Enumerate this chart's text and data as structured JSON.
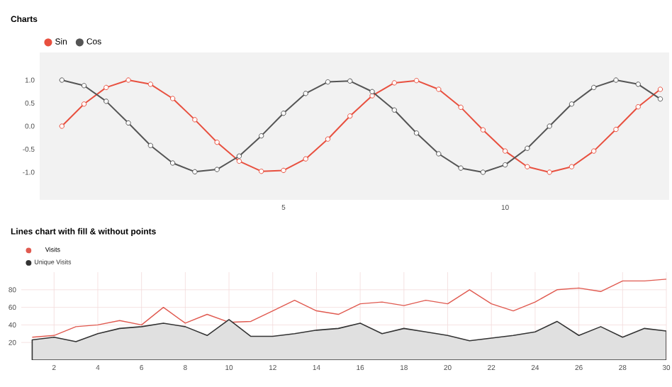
{
  "chart_data": [
    {
      "type": "line",
      "title": "Charts",
      "x": [
        0,
        0.5,
        1,
        1.5,
        2,
        2.5,
        3,
        3.5,
        4,
        4.5,
        5,
        5.5,
        6,
        6.5,
        7,
        7.5,
        8,
        8.5,
        9,
        9.5,
        10,
        10.5,
        11,
        11.5,
        12,
        12.5,
        13,
        13.5
      ],
      "series": [
        {
          "name": "Sin",
          "color": "#e8503f",
          "values": [
            0,
            0.48,
            0.84,
            1.0,
            0.91,
            0.6,
            0.14,
            -0.35,
            -0.76,
            -0.98,
            -0.96,
            -0.71,
            -0.28,
            0.22,
            0.66,
            0.94,
            0.99,
            0.8,
            0.41,
            -0.08,
            -0.54,
            -0.88,
            -1.0,
            -0.88,
            -0.54,
            -0.07,
            0.42,
            0.8
          ]
        },
        {
          "name": "Cos",
          "color": "#555555",
          "values": [
            1.0,
            0.88,
            0.54,
            0.07,
            -0.42,
            -0.8,
            -0.99,
            -0.94,
            -0.65,
            -0.21,
            0.28,
            0.71,
            0.96,
            0.98,
            0.75,
            0.35,
            -0.15,
            -0.6,
            -0.91,
            -1.0,
            -0.84,
            -0.48,
            0.0,
            0.48,
            0.84,
            1.0,
            0.91,
            0.59
          ]
        }
      ],
      "xlim": [
        -0.5,
        13.7
      ],
      "ylim": [
        -1.6,
        1.6
      ],
      "xticks": [
        5,
        10
      ],
      "yticks": [
        {
          "value": -1,
          "label": "-1.0"
        },
        {
          "value": -0.5,
          "label": "-0.5"
        },
        {
          "value": 0,
          "label": "0.0"
        },
        {
          "value": 0.5,
          "label": "0.5"
        },
        {
          "value": 1,
          "label": "1.0"
        }
      ],
      "marker": "circle",
      "legend": "top left",
      "grid": false
    },
    {
      "type": "line",
      "title": "Lines chart with fill & without points",
      "x": [
        1,
        2,
        3,
        4,
        5,
        6,
        7,
        8,
        9,
        10,
        11,
        12,
        13,
        14,
        15,
        16,
        17,
        18,
        19,
        20,
        21,
        22,
        23,
        24,
        25,
        26,
        27,
        28,
        29,
        30
      ],
      "series": [
        {
          "name": "Visits",
          "color": "#e05a50",
          "values": [
            26,
            28,
            38,
            40,
            45,
            40,
            60,
            42,
            52,
            43,
            44,
            56,
            68,
            56,
            52,
            64,
            66,
            62,
            68,
            64,
            80,
            64,
            56,
            66,
            80,
            82,
            78,
            90,
            90,
            92
          ]
        },
        {
          "name": "Unique Visits",
          "type": "area",
          "color": "#333333",
          "values": [
            23,
            26,
            21,
            30,
            36,
            38,
            42,
            38,
            28,
            46,
            27,
            27,
            30,
            34,
            36,
            42,
            30,
            36,
            32,
            28,
            22,
            25,
            28,
            32,
            44,
            28,
            38,
            26,
            36,
            33
          ]
        }
      ],
      "xlim": [
        0.5,
        30
      ],
      "ylim": [
        0,
        100
      ],
      "xticks": [
        2,
        4,
        6,
        8,
        10,
        12,
        14,
        16,
        18,
        20,
        22,
        24,
        26,
        28,
        30
      ],
      "yticks": [
        20,
        40,
        60,
        80
      ],
      "legend": "top left",
      "grid": true
    }
  ]
}
